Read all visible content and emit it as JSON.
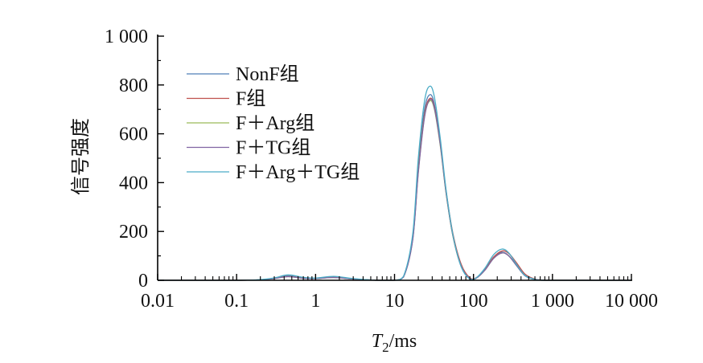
{
  "chart_data": {
    "type": "line",
    "xlabel": "T₂/ms",
    "xlabel_main": "T",
    "xlabel_sub": "2",
    "xlabel_unit": "/ms",
    "ylabel": "信号强度",
    "xscale": "log",
    "xlim": [
      0.01,
      10000
    ],
    "ylim": [
      0,
      1000
    ],
    "x_ticks": [
      0.01,
      0.1,
      1,
      10,
      100,
      1000,
      10000
    ],
    "x_tick_labels": [
      "0.01",
      "0.1",
      "1",
      "10",
      "100",
      "1 000",
      "10 000"
    ],
    "y_ticks": [
      0,
      200,
      400,
      600,
      800,
      1000
    ],
    "y_tick_labels": [
      "0",
      "200",
      "400",
      "600",
      "800",
      "1 000"
    ],
    "grid": false,
    "legend_position": "top-left",
    "x": [
      0.01,
      0.03,
      0.1,
      0.2,
      0.3,
      0.45,
      0.7,
      1.0,
      1.7,
      3.0,
      6.0,
      10,
      13,
      17,
      20,
      24,
      28,
      32,
      38,
      45,
      55,
      70,
      90,
      110,
      140,
      180,
      230,
      280,
      350,
      450,
      600,
      800,
      1000,
      10000
    ],
    "series": [
      {
        "name": "NonF组",
        "color": "#4f7fb6",
        "values": [
          0,
          0,
          0,
          2,
          8,
          18,
          10,
          8,
          14,
          6,
          0,
          0,
          15,
          180,
          470,
          700,
          760,
          720,
          560,
          360,
          180,
          55,
          5,
          10,
          45,
          95,
          115,
          100,
          60,
          18,
          3,
          0,
          0,
          0
        ]
      },
      {
        "name": "F组",
        "color": "#c0504d",
        "values": [
          0,
          0,
          0,
          2,
          8,
          16,
          9,
          7,
          12,
          5,
          0,
          0,
          14,
          170,
          450,
          680,
          745,
          710,
          560,
          365,
          190,
          65,
          10,
          12,
          45,
          95,
          120,
          110,
          72,
          25,
          5,
          0,
          0,
          0
        ]
      },
      {
        "name": "F＋Arg组",
        "color": "#9bbb59",
        "values": [
          0,
          0,
          0,
          2,
          7,
          15,
          8,
          7,
          11,
          5,
          0,
          0,
          14,
          168,
          445,
          672,
          735,
          700,
          550,
          355,
          180,
          58,
          7,
          10,
          42,
          90,
          112,
          100,
          62,
          20,
          4,
          0,
          0,
          0
        ]
      },
      {
        "name": "F＋TG组",
        "color": "#8064a2",
        "values": [
          0,
          0,
          0,
          2,
          7,
          15,
          8,
          7,
          11,
          5,
          0,
          0,
          13,
          165,
          440,
          668,
          740,
          705,
          555,
          358,
          182,
          58,
          7,
          10,
          42,
          90,
          112,
          100,
          62,
          20,
          4,
          0,
          0,
          0
        ]
      },
      {
        "name": "F＋Arg＋TG组",
        "color": "#4bacc6",
        "values": [
          0,
          0,
          0,
          3,
          10,
          22,
          12,
          9,
          16,
          7,
          0,
          0,
          16,
          190,
          500,
          735,
          795,
          750,
          580,
          370,
          185,
          55,
          5,
          12,
          50,
          105,
          128,
          112,
          66,
          20,
          3,
          0,
          0,
          0
        ]
      }
    ]
  }
}
